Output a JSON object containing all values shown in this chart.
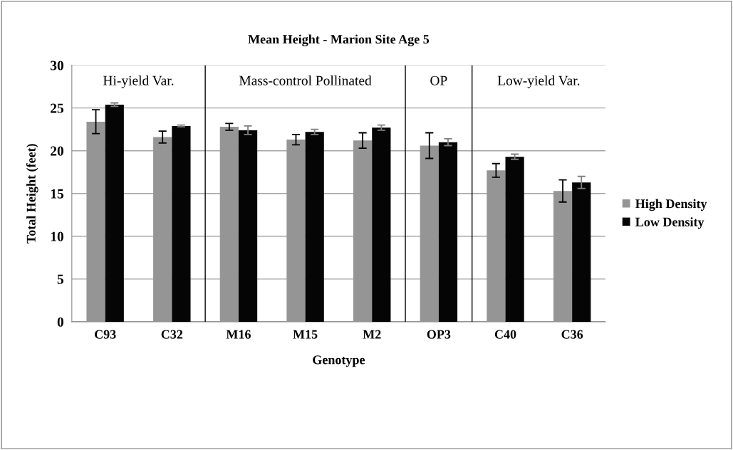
{
  "chart_data": {
    "type": "bar",
    "title": "Mean Height - Marion Site Age 5",
    "xlabel": "Genotype",
    "ylabel": "Total Height (feet)",
    "categories": [
      "C93",
      "C32",
      "M16",
      "M15",
      "M2",
      "OP3",
      "C40",
      "C36"
    ],
    "series": [
      {
        "name": "High Density",
        "color": "#959595",
        "values": [
          23.4,
          21.6,
          22.8,
          21.3,
          21.2,
          20.6,
          17.7,
          15.3
        ],
        "errors": [
          1.4,
          0.7,
          0.4,
          0.6,
          0.9,
          1.5,
          0.8,
          1.3
        ]
      },
      {
        "name": "Low Density",
        "color": "#050505",
        "values": [
          25.4,
          22.9,
          22.4,
          22.2,
          22.7,
          21.0,
          19.3,
          16.3
        ],
        "errors": [
          0.2,
          0.1,
          0.5,
          0.3,
          0.3,
          0.4,
          0.3,
          0.7
        ]
      }
    ],
    "ylim": [
      0,
      30
    ],
    "yticks": [
      0,
      5,
      10,
      15,
      20,
      25,
      30
    ],
    "grid": "y",
    "legend": "right",
    "annotations": [
      "Hi-yield Var.",
      "Mass-control Pollinated",
      "OP",
      "Low-yield Var."
    ]
  }
}
